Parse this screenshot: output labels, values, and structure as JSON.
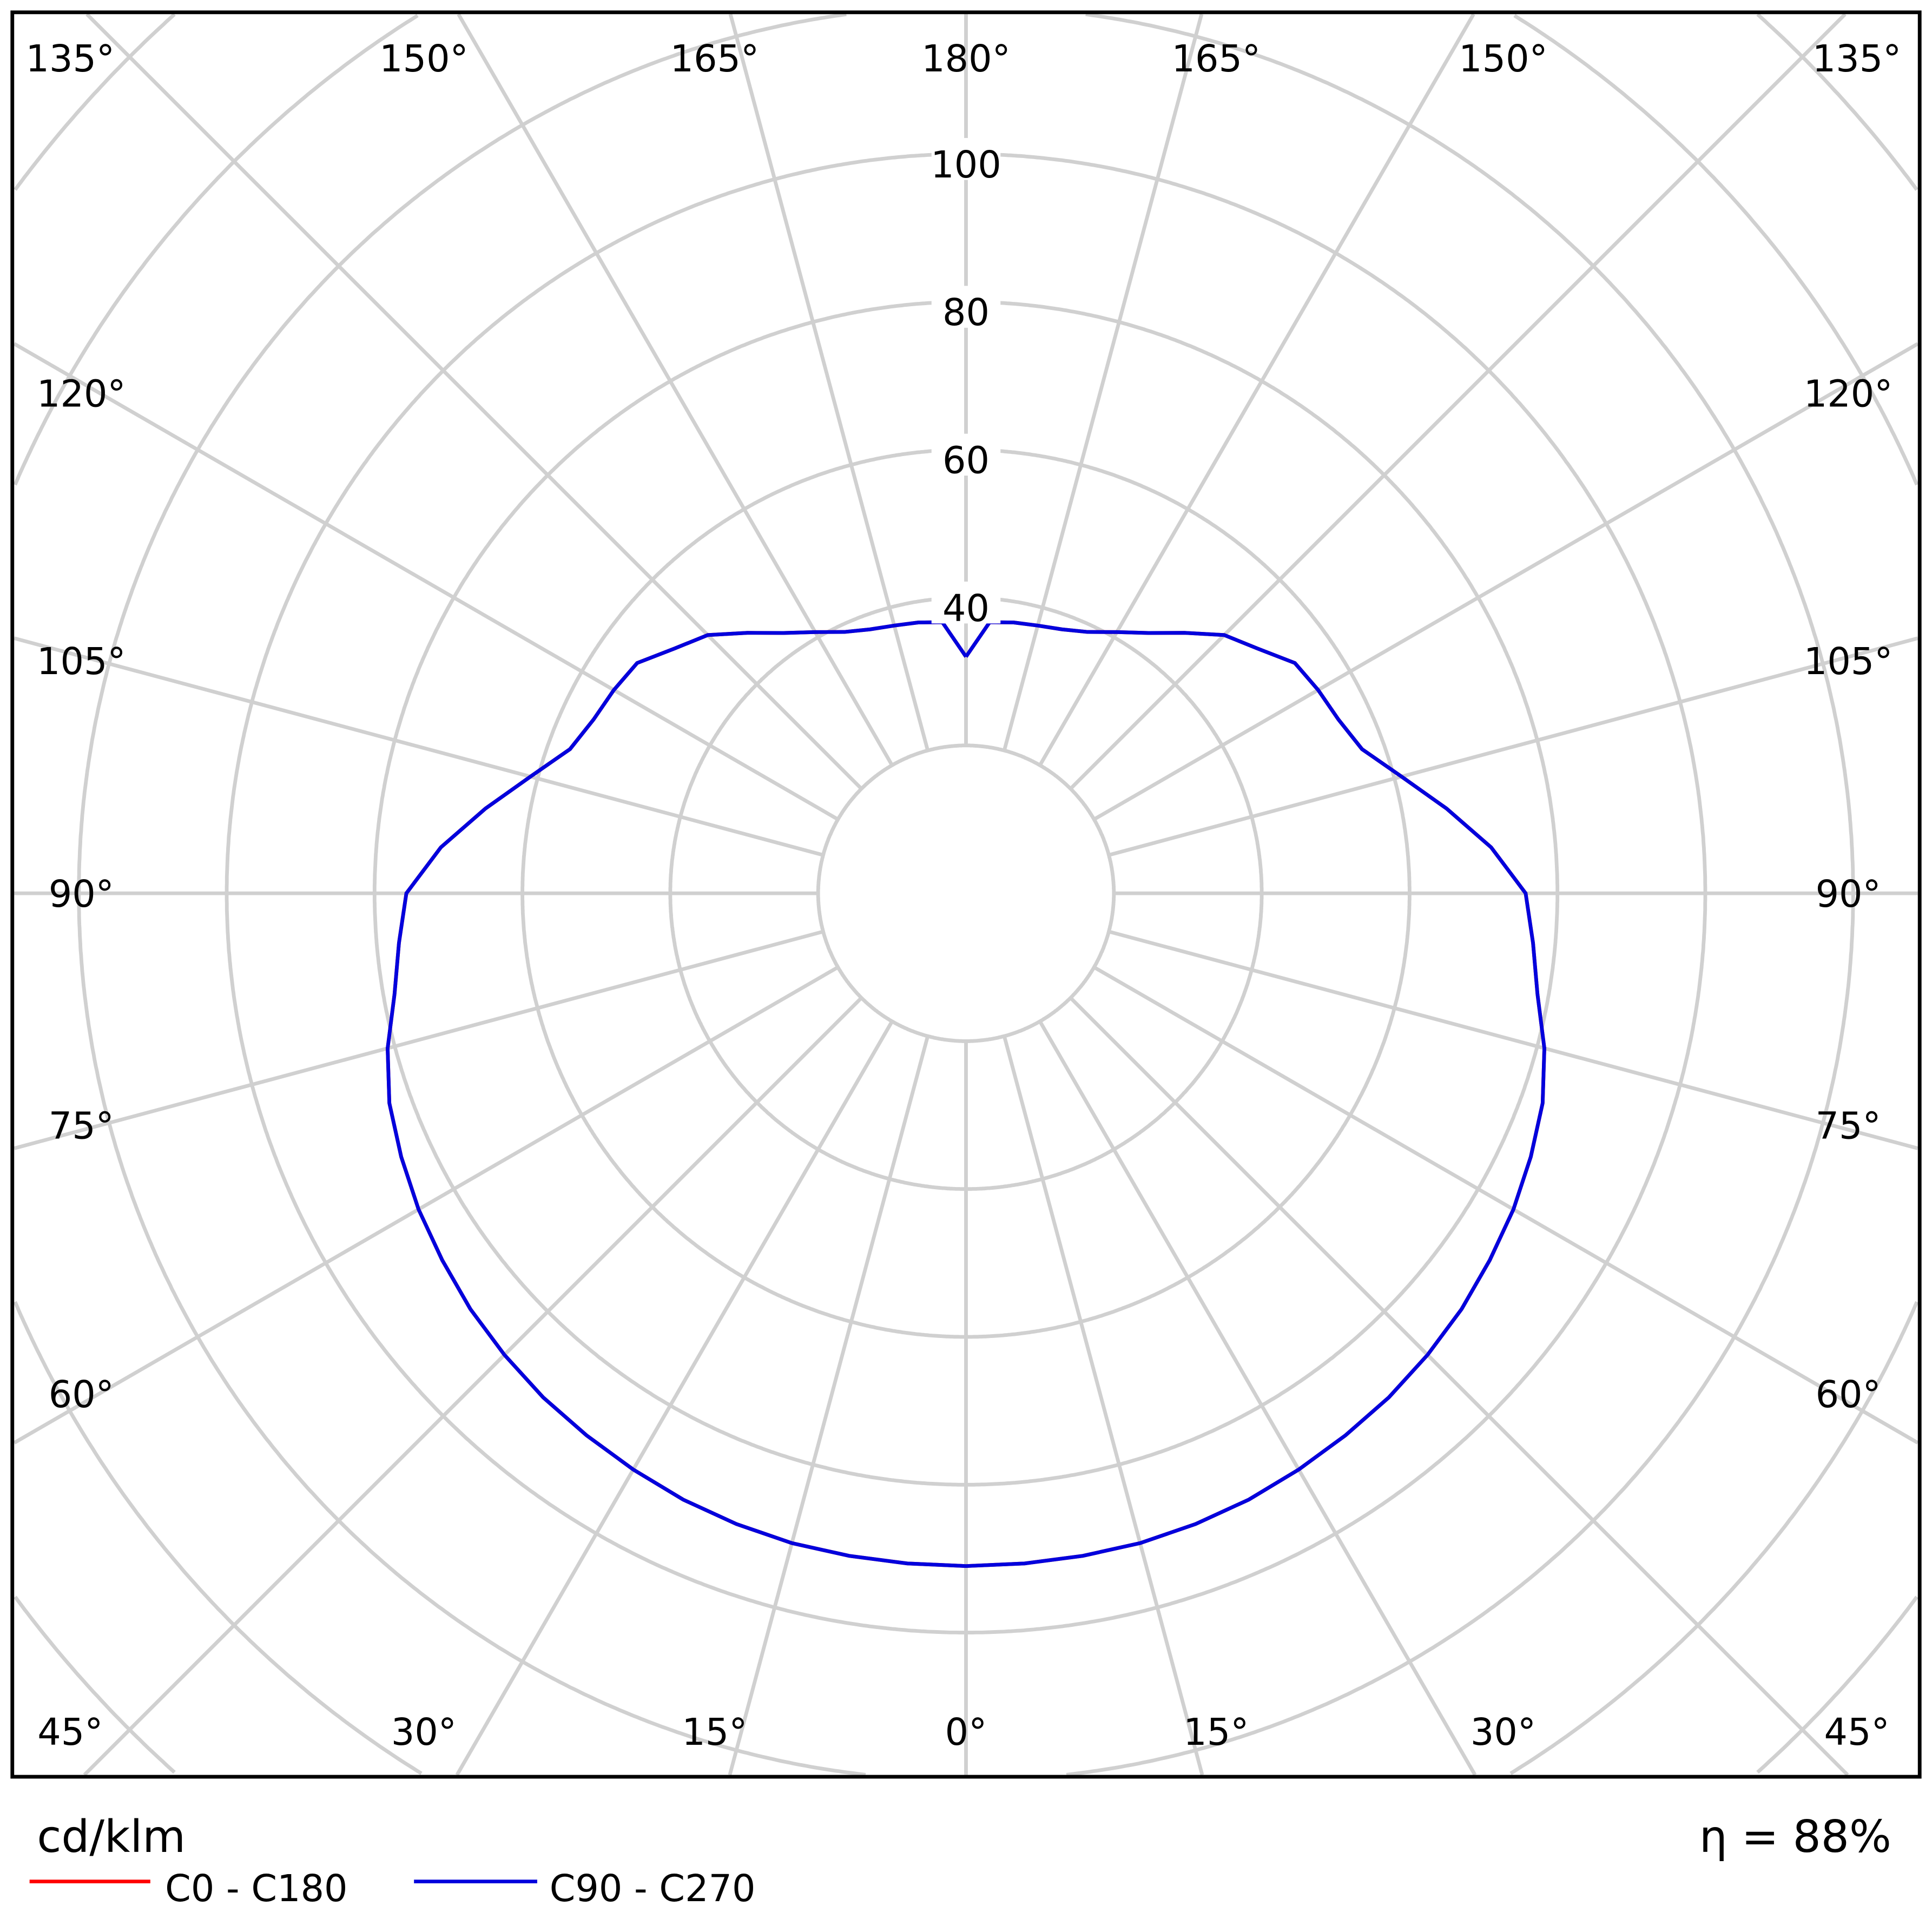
{
  "chart_data": {
    "type": "polar-line",
    "unit_label": "cd/klm",
    "efficiency_label": "η = 88%",
    "radial_ticks": [
      40,
      60,
      80,
      100
    ],
    "radial_range": [
      0,
      120
    ],
    "grid": true,
    "angle_labels_top": [
      "135°",
      "150°",
      "165°",
      "180°",
      "165°",
      "150°",
      "135°"
    ],
    "angle_labels_side": [
      "120°",
      "105°",
      "90°",
      "75°",
      "60°"
    ],
    "angle_labels_bottom": [
      "45°",
      "30°",
      "15°",
      "0°",
      "15°",
      "30°",
      "45°"
    ],
    "angles": [
      0,
      5,
      10,
      15,
      20,
      25,
      30,
      35,
      40,
      45,
      50,
      55,
      60,
      65,
      70,
      75,
      80,
      85,
      90,
      95,
      100,
      105,
      110,
      115,
      120,
      125,
      130,
      135,
      140,
      145,
      150,
      155,
      160,
      165,
      170,
      175,
      180
    ],
    "series": [
      {
        "name": "C0 - C180",
        "color": "#ff0000",
        "values": [
          91,
          91,
          91,
          91,
          90.8,
          90.5,
          90,
          89.5,
          89,
          88.3,
          87.5,
          86.5,
          85.5,
          84.3,
          83,
          81,
          78.5,
          77,
          75.7,
          71.3,
          66,
          61,
          57,
          55.6,
          55,
          54.3,
          51.5,
          49.4,
          46,
          43,
          40.8,
          39,
          38,
          37.5,
          37.2,
          36.8,
          32
        ]
      },
      {
        "name": "C90 - C270",
        "color": "#0000dd",
        "values": [
          91,
          91,
          91,
          91,
          90.8,
          90.5,
          90,
          89.5,
          89,
          88.3,
          87.5,
          86.5,
          85.5,
          84.3,
          83,
          81,
          78.5,
          77,
          75.7,
          71.3,
          66,
          61,
          57,
          55.6,
          55,
          54.3,
          51.5,
          49.4,
          46,
          43,
          40.8,
          39,
          38,
          37.5,
          37.2,
          36.8,
          32
        ]
      }
    ],
    "legend_position": "bottom-left"
  }
}
